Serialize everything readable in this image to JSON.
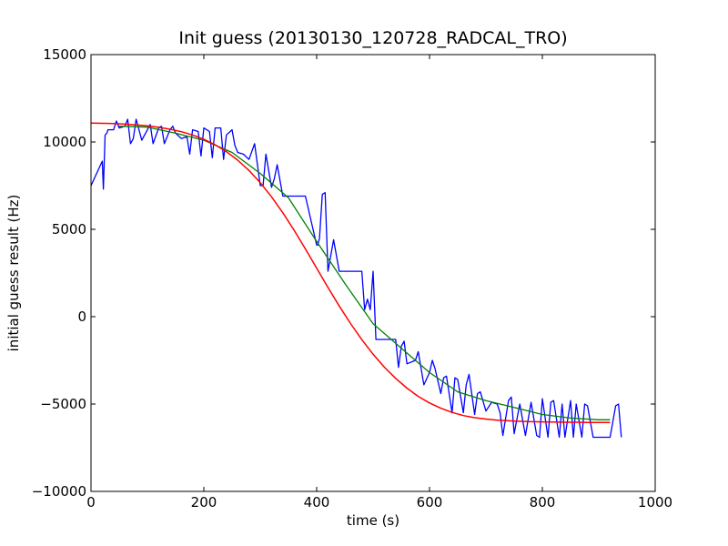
{
  "chart_data": {
    "type": "line",
    "title": "Init guess (20130130_120728_RADCAL_TRO)",
    "xlabel": "time (s)",
    "ylabel": "initial guess result (Hz)",
    "xlim": [
      0,
      1000
    ],
    "ylim": [
      -10000,
      15000
    ],
    "xticks": [
      0,
      200,
      400,
      600,
      800,
      1000
    ],
    "yticks": [
      -10000,
      -5000,
      0,
      5000,
      10000,
      15000
    ],
    "grid": false,
    "colors": {
      "raw": "#0000ff",
      "smoothed": "#008000",
      "fit": "#ff0000"
    },
    "series": [
      {
        "key": "raw",
        "x": [
          0,
          20,
          22,
          25,
          28,
          30,
          40,
          45,
          50,
          60,
          65,
          70,
          75,
          80,
          90,
          100,
          105,
          110,
          120,
          125,
          130,
          140,
          145,
          150,
          160,
          170,
          175,
          180,
          190,
          195,
          200,
          210,
          215,
          220,
          230,
          235,
          240,
          250,
          255,
          260,
          270,
          280,
          290,
          300,
          305,
          310,
          320,
          325,
          330,
          340,
          345,
          350,
          360,
          380,
          400,
          402,
          405,
          410,
          415,
          420,
          425,
          430,
          440,
          450,
          460,
          470,
          480,
          485,
          490,
          495,
          500,
          505,
          510,
          520,
          540,
          545,
          550,
          555,
          560,
          575,
          580,
          590,
          600,
          605,
          610,
          620,
          625,
          630,
          640,
          645,
          650,
          660,
          665,
          670,
          680,
          685,
          690,
          700,
          710,
          720,
          725,
          730,
          740,
          745,
          750,
          760,
          770,
          780,
          790,
          795,
          800,
          810,
          815,
          820,
          830,
          835,
          840,
          850,
          855,
          860,
          870,
          875,
          880,
          890,
          900,
          910,
          920,
          930,
          935,
          940
        ],
        "y": [
          7500,
          8900,
          7300,
          10400,
          10500,
          10700,
          10700,
          11200,
          10800,
          10900,
          11300,
          9900,
          10200,
          11300,
          10100,
          10700,
          11000,
          9900,
          10800,
          10900,
          9900,
          10700,
          10900,
          10500,
          10200,
          10300,
          9300,
          10700,
          10600,
          9200,
          10800,
          10600,
          9100,
          10800,
          10800,
          9000,
          10400,
          10700,
          9800,
          9400,
          9300,
          9000,
          9900,
          7500,
          7500,
          9300,
          7400,
          7900,
          8700,
          6900,
          6900,
          6900,
          6900,
          6900,
          4100,
          4100,
          4500,
          7000,
          7100,
          2600,
          3500,
          4400,
          2600,
          2600,
          2600,
          2600,
          2600,
          400,
          1000,
          400,
          2600,
          -1300,
          -1300,
          -1300,
          -1300,
          -2900,
          -1700,
          -1400,
          -2700,
          -2500,
          -2000,
          -3900,
          -3200,
          -2500,
          -3000,
          -4400,
          -3500,
          -3400,
          -5500,
          -3500,
          -3600,
          -5500,
          -3900,
          -3300,
          -5600,
          -4400,
          -4300,
          -5400,
          -4900,
          -5000,
          -5500,
          -6800,
          -4800,
          -4600,
          -6700,
          -5000,
          -6800,
          -4900,
          -6800,
          -6900,
          -4700,
          -6900,
          -4900,
          -4800,
          -6900,
          -5000,
          -6900,
          -4800,
          -6900,
          -5000,
          -6900,
          -5000,
          -5100,
          -6900,
          -6900,
          -6900,
          -6900,
          -5100,
          -5000,
          -6900
        ],
        "stroke_width": 1.3
      },
      {
        "key": "smoothed",
        "x": [
          50,
          100,
          150,
          200,
          250,
          300,
          350,
          400,
          450,
          500,
          550,
          600,
          650,
          700,
          750,
          800,
          850,
          900,
          920
        ],
        "y": [
          10900,
          10850,
          10500,
          10100,
          9400,
          8200,
          6800,
          4300,
          1900,
          -400,
          -1800,
          -3200,
          -4300,
          -4800,
          -5200,
          -5600,
          -5800,
          -5900,
          -5900
        ],
        "stroke_width": 1.3
      },
      {
        "key": "fit",
        "x": [
          0,
          20,
          40,
          60,
          80,
          100,
          120,
          140,
          160,
          180,
          200,
          220,
          240,
          260,
          280,
          300,
          320,
          340,
          360,
          380,
          400,
          420,
          440,
          460,
          480,
          500,
          520,
          540,
          560,
          580,
          600,
          620,
          640,
          660,
          680,
          700,
          720,
          740,
          760,
          780,
          800,
          820,
          840,
          860,
          880,
          900,
          920
        ],
        "y": [
          11080,
          11070,
          11050,
          11020,
          10980,
          10920,
          10840,
          10730,
          10590,
          10400,
          10150,
          9840,
          9450,
          8960,
          8370,
          7670,
          6860,
          5950,
          4950,
          3880,
          2770,
          1670,
          610,
          -390,
          -1310,
          -2150,
          -2890,
          -3530,
          -4090,
          -4560,
          -4940,
          -5240,
          -5480,
          -5660,
          -5780,
          -5860,
          -5920,
          -5960,
          -5990,
          -6010,
          -6020,
          -6030,
          -6040,
          -6040,
          -6050,
          -6050,
          -6050
        ],
        "stroke_width": 1.5
      }
    ]
  }
}
